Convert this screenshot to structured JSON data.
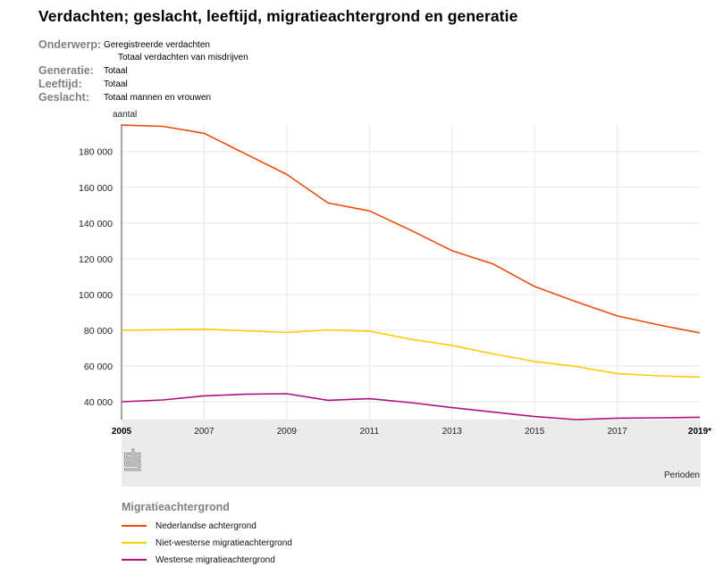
{
  "page": {
    "title": "Verdachten; geslacht, leeftijd, migratieachtergrond en generatie"
  },
  "meta": [
    {
      "label": "Onderwerp:",
      "value": "Geregistreerde verdachten",
      "sub": "Totaal verdachten van misdrijven"
    },
    {
      "label": "Generatie:",
      "value": "Totaal"
    },
    {
      "label": "Leeftijd:",
      "value": "Totaal"
    },
    {
      "label": "Geslacht:",
      "value": "Totaal mannen en vrouwen"
    }
  ],
  "logo": {
    "icon": "cbs-logo-icon",
    "text": "cbs"
  },
  "chart_data": {
    "type": "line",
    "title": "Verdachten; geslacht, leeftijd, migratieachtergrond en generatie",
    "ylabel": "aantal",
    "xlabel": "Perioden",
    "x": [
      2005,
      2006,
      2007,
      2008,
      2009,
      2010,
      2011,
      2012,
      2013,
      2014,
      2015,
      2016,
      2017,
      2018,
      2019
    ],
    "x_tick_labels": [
      {
        "value": 2005,
        "label": "2005",
        "bold": true
      },
      {
        "value": 2007,
        "label": "2007",
        "bold": false
      },
      {
        "value": 2009,
        "label": "2009",
        "bold": false
      },
      {
        "value": 2011,
        "label": "2011",
        "bold": false
      },
      {
        "value": 2013,
        "label": "2013",
        "bold": false
      },
      {
        "value": 2015,
        "label": "2015",
        "bold": false
      },
      {
        "value": 2017,
        "label": "2017",
        "bold": false
      },
      {
        "value": 2019,
        "label": "2019*",
        "bold": true
      }
    ],
    "y_ticks": [
      {
        "value": 40000,
        "label": "40 000"
      },
      {
        "value": 60000,
        "label": "60 000"
      },
      {
        "value": 80000,
        "label": "80 000"
      },
      {
        "value": 100000,
        "label": "100 000"
      },
      {
        "value": 120000,
        "label": "120 000"
      },
      {
        "value": 140000,
        "label": "140 000"
      },
      {
        "value": 160000,
        "label": "160 000"
      },
      {
        "value": 180000,
        "label": "180 000"
      }
    ],
    "ylim": [
      30000,
      195000
    ],
    "xlim": [
      2005,
      2019
    ],
    "grid": true,
    "legend_title": "Migratieachtergrond",
    "legend_position": "bottom",
    "series": [
      {
        "name": "Nederlandse achtergrond",
        "color": "#e94c0a",
        "values": [
          194800,
          194100,
          190200,
          178700,
          167200,
          151200,
          146800,
          136000,
          124500,
          117000,
          104500,
          96000,
          88000,
          83000,
          78500
        ]
      },
      {
        "name": "Niet-westerse migratieachtergrond",
        "color": "#ffcc00",
        "values": [
          80000,
          80300,
          80600,
          79700,
          78700,
          80200,
          79500,
          75000,
          71500,
          66700,
          62500,
          59700,
          55800,
          54500,
          53800
        ]
      },
      {
        "name": "Westerse migratieachtergrond",
        "color": "#af0e80",
        "values": [
          40000,
          41000,
          43300,
          44200,
          44500,
          40800,
          41700,
          39500,
          36700,
          34200,
          31700,
          30000,
          30800,
          31000,
          31300
        ]
      }
    ]
  }
}
